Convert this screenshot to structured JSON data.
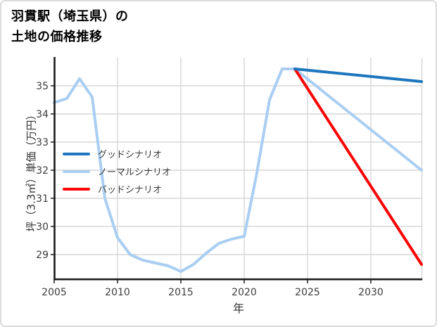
{
  "title": {
    "line1": "羽貫駅（埼玉県）の",
    "line2": "土地の価格推移"
  },
  "axes": {
    "xlabel": "年",
    "ylabel": "坪（3.3㎡）単価（万円）"
  },
  "legend": {
    "items": [
      {
        "label": "グッドシナリオ",
        "color": "#1d76bd"
      },
      {
        "label": "ノーマルシナリオ",
        "color": "#a9cef2"
      },
      {
        "label": "バッドシナリオ",
        "color": "#fa0505"
      }
    ]
  },
  "colors": {
    "grid": "#d7d7d7",
    "spine": "#1c1c1c",
    "tick_text": "#3c3c3c",
    "background": "#ffffff",
    "card_border": "#dcdcdc"
  },
  "chart_data": {
    "type": "line",
    "title": "羽貫駅（埼玉県）の土地の価格推移",
    "xlabel": "年",
    "ylabel": "坪（3.3㎡）単価（万円）",
    "xlim": [
      2005,
      2034
    ],
    "ylim": [
      28.1,
      36.0
    ],
    "x_ticks": [
      2005,
      2010,
      2015,
      2020,
      2025,
      2030
    ],
    "y_ticks": [
      29,
      30,
      31,
      32,
      33,
      34,
      35
    ],
    "grid": true,
    "legend_position": "upper left inside",
    "series": [
      {
        "name": "グッドシナリオ",
        "color": "#1d76bd",
        "x": [
          2024,
          2034
        ],
        "values": [
          35.6,
          35.15
        ]
      },
      {
        "name": "ノーマルシナリオ",
        "color": "#a9cef2",
        "x": [
          2005,
          2006,
          2007,
          2008,
          2009,
          2010,
          2011,
          2012,
          2013,
          2014,
          2015,
          2016,
          2017,
          2018,
          2019,
          2020,
          2021,
          2022,
          2023,
          2024,
          2034
        ],
        "values": [
          34.4,
          34.55,
          35.25,
          34.6,
          31.0,
          29.6,
          29.0,
          28.8,
          28.7,
          28.6,
          28.4,
          28.65,
          29.05,
          29.4,
          29.55,
          29.65,
          31.9,
          34.5,
          35.6,
          35.6,
          32.0
        ]
      },
      {
        "name": "バッドシナリオ",
        "color": "#fa0505",
        "x": [
          2024,
          2034
        ],
        "values": [
          35.6,
          28.65
        ]
      }
    ],
    "draw_order": [
      1,
      2,
      0
    ]
  }
}
